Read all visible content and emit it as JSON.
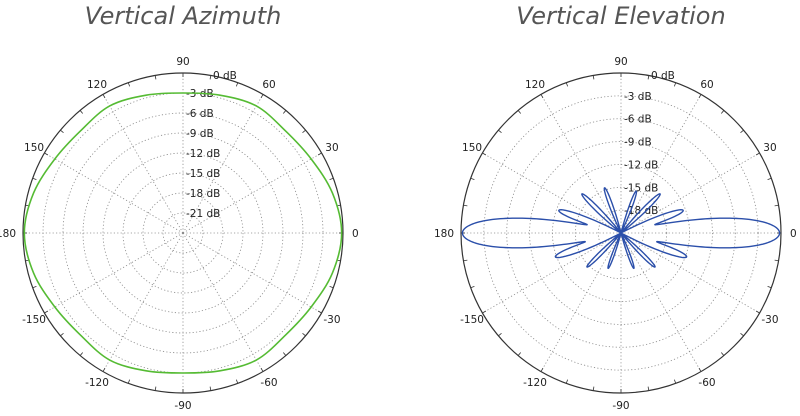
{
  "chart_data": [
    {
      "type": "polar",
      "title": "Vertical Azimuth",
      "color": "#55bb33",
      "angle_ticks": [
        90,
        60,
        30,
        0,
        -30,
        -60,
        -90,
        -120,
        -150,
        180,
        150,
        120
      ],
      "angle_tick_labels": [
        "90",
        "60",
        "30",
        "0",
        "-30",
        "-60",
        "-90",
        "-120",
        "-150",
        "180",
        "150",
        "120"
      ],
      "radial_ticks_db": [
        0,
        -3,
        -6,
        -9,
        -12,
        -15,
        -18,
        -21
      ],
      "radial_tick_labels": [
        "0 dB",
        "-3 dB",
        "-6 dB",
        "-9 dB",
        "-12 dB",
        "-15 dB",
        "-18 dB",
        "-21 dB"
      ],
      "r_range_db": [
        -24,
        0
      ],
      "grid": true,
      "series": [
        {
          "angles_deg": [
            0,
            15,
            30,
            45,
            60,
            75,
            90,
            105,
            120,
            135,
            150,
            165,
            180,
            195,
            210,
            225,
            240,
            255,
            270,
            285,
            300,
            315,
            330,
            345
          ],
          "gain_db": [
            -0.2,
            -0.8,
            -1.8,
            -2.3,
            -2.0,
            -2.6,
            -3.0,
            -2.6,
            -2.0,
            -2.3,
            -1.8,
            -0.8,
            -0.2,
            -0.8,
            -1.8,
            -2.3,
            -2.0,
            -2.6,
            -3.0,
            -2.6,
            -2.0,
            -2.3,
            -1.8,
            -0.8
          ]
        }
      ]
    },
    {
      "type": "polar",
      "title": "Vertical Elevation",
      "color": "#2b4faa",
      "angle_ticks": [
        90,
        60,
        30,
        0,
        -30,
        -60,
        -90,
        -120,
        -150,
        180,
        150,
        120
      ],
      "angle_tick_labels": [
        "90",
        "60",
        "30",
        "0",
        "-30",
        "-60",
        "-90",
        "-120",
        "-150",
        "180",
        "150",
        "120"
      ],
      "radial_ticks_db": [
        0,
        -3,
        -6,
        -9,
        -12,
        -15,
        -18
      ],
      "radial_tick_labels": [
        "0 dB",
        "-3 dB",
        "-6 dB",
        "-9 dB",
        "-12 dB",
        "-15 dB",
        "-18 dB"
      ],
      "r_range_db": [
        -21,
        0
      ],
      "grid": true,
      "series": [
        {
          "lobes": [
            {
              "center_deg": 0,
              "peak_db": -0.2,
              "width_deg": 4.5
            },
            {
              "center_deg": 180,
              "peak_db": -0.2,
              "width_deg": 4.5
            },
            {
              "center_deg": 20,
              "peak_db": -12.5,
              "width_deg": 3.5
            },
            {
              "center_deg": 160,
              "peak_db": -12.5,
              "width_deg": 3.5
            },
            {
              "center_deg": -20,
              "peak_db": -12.0,
              "width_deg": 3.5
            },
            {
              "center_deg": -160,
              "peak_db": -12.0,
              "width_deg": 3.5
            },
            {
              "center_deg": 45,
              "peak_db": -14.0,
              "width_deg": 3.0
            },
            {
              "center_deg": 135,
              "peak_db": -14.0,
              "width_deg": 3.0
            },
            {
              "center_deg": 70,
              "peak_db": -15.5,
              "width_deg": 3.0
            },
            {
              "center_deg": 110,
              "peak_db": -15.0,
              "width_deg": 3.0
            },
            {
              "center_deg": -45,
              "peak_db": -15.0,
              "width_deg": 3.0
            },
            {
              "center_deg": -135,
              "peak_db": -15.0,
              "width_deg": 3.0
            },
            {
              "center_deg": -70,
              "peak_db": -16.5,
              "width_deg": 3.0
            },
            {
              "center_deg": -110,
              "peak_db": -16.5,
              "width_deg": 3.0
            }
          ],
          "floor_db": -21
        }
      ]
    }
  ]
}
